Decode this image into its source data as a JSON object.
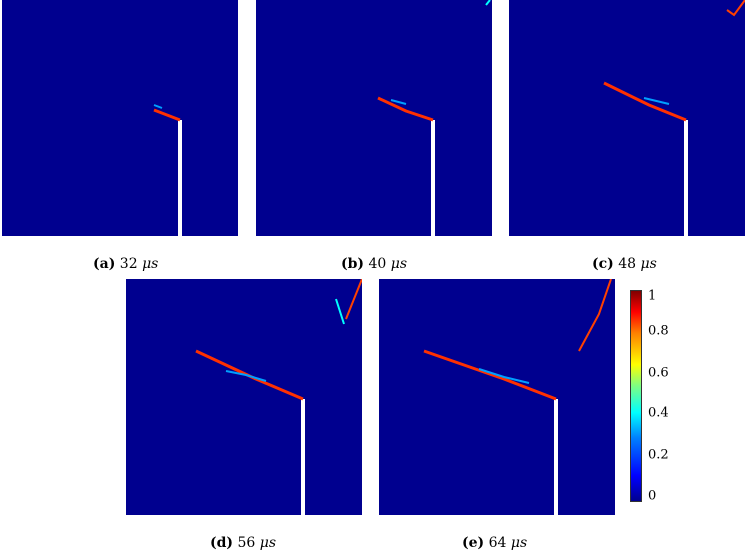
{
  "panels": [
    {
      "label": "(a)",
      "value": "32",
      "unit": "μs"
    },
    {
      "label": "(b)",
      "value": "40",
      "unit": "μs"
    },
    {
      "label": "(c)",
      "value": "48",
      "unit": "μs"
    },
    {
      "label": "(d)",
      "value": "56",
      "unit": "μs"
    },
    {
      "label": "(e)",
      "value": "64",
      "unit": "μs"
    }
  ],
  "colorbar": {
    "ticks": [
      "1",
      "0.8",
      "0.6",
      "0.4",
      "0.2",
      "0"
    ],
    "colors": {
      "low": "#00008f",
      "high": "#800000"
    }
  }
}
